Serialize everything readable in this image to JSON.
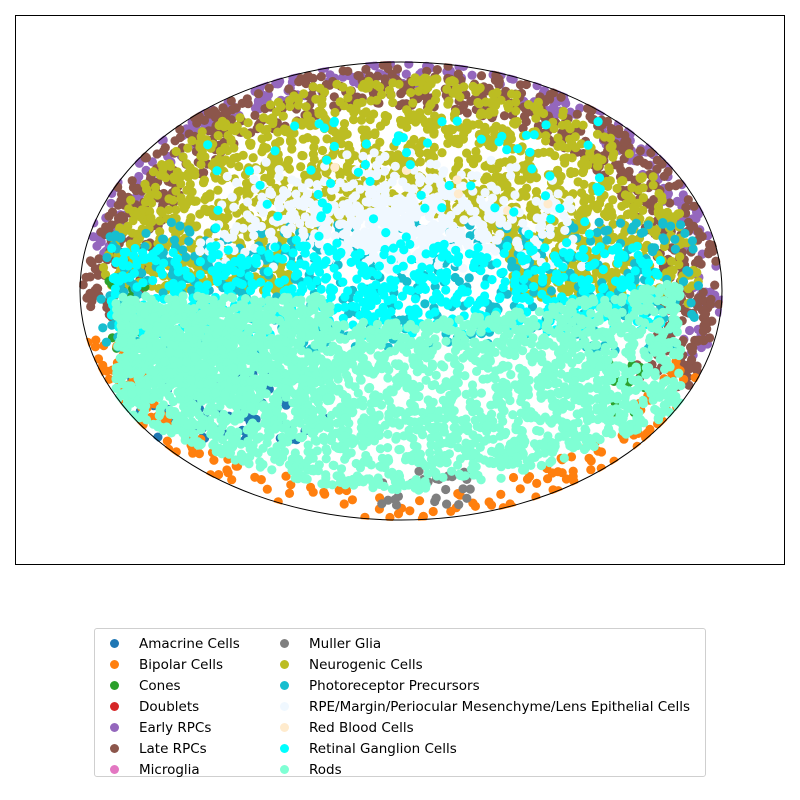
{
  "chart_data": {
    "type": "scatter",
    "title": "",
    "xlabel": "",
    "ylabel": "",
    "projection": "ellipse (Mollweide-style) embedding with outline",
    "axes_ticks": "hidden",
    "grid": false,
    "legend_placement": "bottom, below plot, two columns",
    "series": [
      {
        "name": "Amacrine Cells",
        "color": "#1f77b4",
        "region": "lower-left rim"
      },
      {
        "name": "Bipolar Cells",
        "color": "#ff7f0e",
        "region": "lower rim"
      },
      {
        "name": "Cones",
        "color": "#2ca02c",
        "region": "left and right edges"
      },
      {
        "name": "Doublets",
        "color": "#d62728",
        "region": "sparse"
      },
      {
        "name": "Early RPCs",
        "color": "#9467bd",
        "region": "upper and right outer rim"
      },
      {
        "name": "Late RPCs",
        "color": "#8c564b",
        "region": "outer rim"
      },
      {
        "name": "Microglia",
        "color": "#e377c2",
        "region": "sparse"
      },
      {
        "name": "Muller Glia",
        "color": "#7f7f7f",
        "region": "bottom edge"
      },
      {
        "name": "Neurogenic Cells",
        "color": "#bcbd22",
        "region": "upper half ring"
      },
      {
        "name": "Photoreceptor Precursors",
        "color": "#17becf",
        "region": "middle band"
      },
      {
        "name": "RPE/Margin/Periocular Mesenchyme/Lens Epithelial Cells",
        "color": "#f0f8ff",
        "region": "upper center"
      },
      {
        "name": "Red Blood Cells",
        "color": "#ffebcd",
        "region": "sparse"
      },
      {
        "name": "Retinal Ganglion Cells",
        "color": "#00ffff",
        "region": "middle band"
      },
      {
        "name": "Rods",
        "color": "#7fffd4",
        "region": "lower half"
      }
    ]
  },
  "legend": {
    "entries": [
      {
        "label": "Amacrine Cells",
        "color": "#1f77b4"
      },
      {
        "label": "Bipolar Cells",
        "color": "#ff7f0e"
      },
      {
        "label": "Cones",
        "color": "#2ca02c"
      },
      {
        "label": "Doublets",
        "color": "#d62728"
      },
      {
        "label": "Early RPCs",
        "color": "#9467bd"
      },
      {
        "label": "Late RPCs",
        "color": "#8c564b"
      },
      {
        "label": "Microglia",
        "color": "#e377c2"
      },
      {
        "label": "Muller Glia",
        "color": "#7f7f7f"
      },
      {
        "label": "Neurogenic Cells",
        "color": "#bcbd22"
      },
      {
        "label": "Photoreceptor Precursors",
        "color": "#17becf"
      },
      {
        "label": "RPE/Margin/Periocular Mesenchyme/Lens Epithelial Cells",
        "color": "#f0f8ff"
      },
      {
        "label": "Red Blood Cells",
        "color": "#ffebcd"
      },
      {
        "label": "Retinal Ganglion Cells",
        "color": "#00ffff"
      },
      {
        "label": "Rods",
        "color": "#7fffd4"
      }
    ]
  }
}
